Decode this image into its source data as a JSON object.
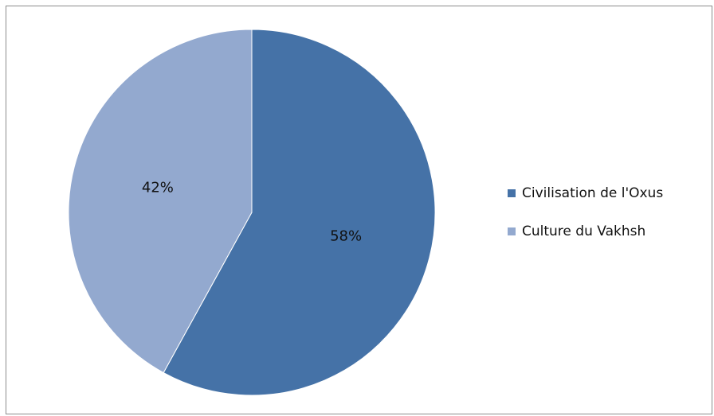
{
  "chart_data": {
    "type": "pie",
    "title": "",
    "categories": [
      "Civilisation de l'Oxus",
      "Culture du Vakhsh"
    ],
    "values": [
      58,
      42
    ],
    "data_labels": [
      "58%",
      "42%"
    ],
    "colors": [
      "#4572a7",
      "#93a9cf"
    ],
    "start_angle_deg": 0,
    "direction": "clockwise",
    "legend": {
      "placement": "right",
      "entries": [
        "Civilisation de l'Oxus",
        "Culture du Vakhsh"
      ]
    }
  }
}
